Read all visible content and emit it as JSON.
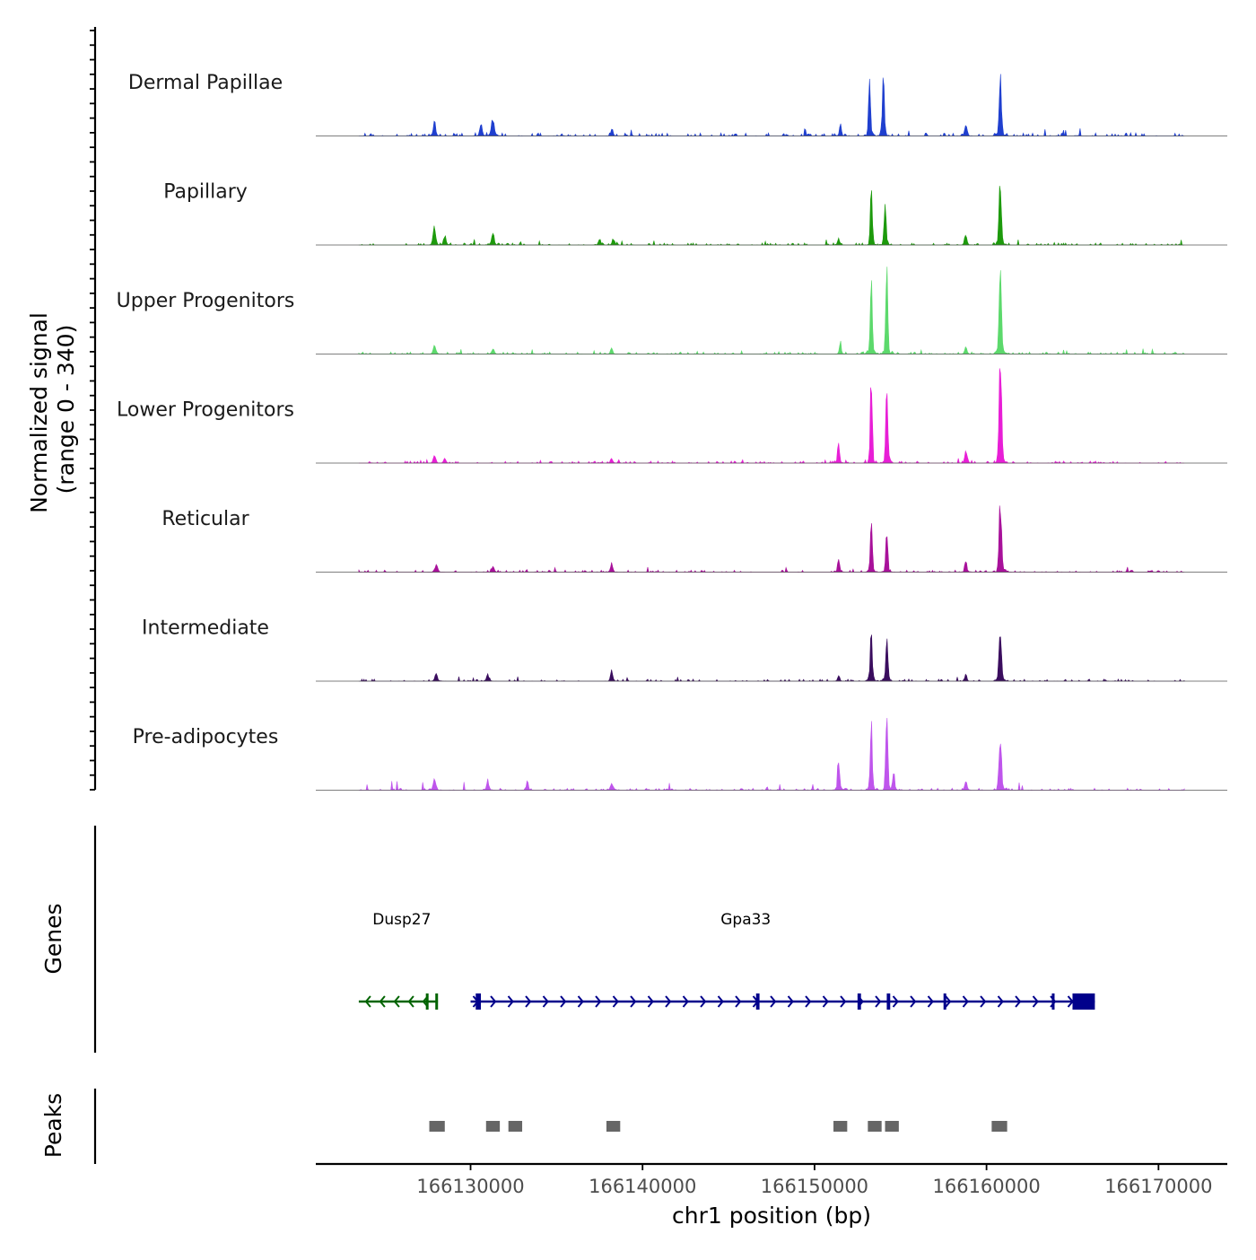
{
  "chart_data": {
    "type": "area",
    "title": "",
    "ylabel_line1": "Normalized signal",
    "ylabel_line2": "(range 0 - 340)",
    "ylim": [
      0,
      340
    ],
    "xlabel": "chr1 position (bp)",
    "xlim": [
      166121000,
      166174000
    ],
    "xticks": [
      {
        "value": 166130000,
        "label": "166130000"
      },
      {
        "value": 166140000,
        "label": "166140000"
      },
      {
        "value": 166150000,
        "label": "166150000"
      },
      {
        "value": 166160000,
        "label": "166160000"
      },
      {
        "value": 166170000,
        "label": "166170000"
      }
    ],
    "signal_range": [
      166123500,
      166171500
    ],
    "series": [
      {
        "name": "Dermal Papillae",
        "color": "#1f3fcf",
        "baseline": 3,
        "noise": 6,
        "peaks": [
          [
            166127900,
            14,
            150
          ],
          [
            166130600,
            10,
            150
          ],
          [
            166131300,
            18,
            180
          ],
          [
            166138200,
            7,
            120
          ],
          [
            166151500,
            12,
            120
          ],
          [
            166153200,
            58,
            120
          ],
          [
            166154000,
            60,
            120
          ],
          [
            166158800,
            13,
            140
          ],
          [
            166160800,
            63,
            140
          ]
        ]
      },
      {
        "name": "Papillary",
        "color": "#1d9a0c",
        "baseline": 2,
        "noise": 5,
        "peaks": [
          [
            166127900,
            20,
            160
          ],
          [
            166128500,
            10,
            150
          ],
          [
            166131300,
            11,
            160
          ],
          [
            166137500,
            6,
            140
          ],
          [
            166138300,
            6,
            140
          ],
          [
            166151400,
            6,
            130
          ],
          [
            166153300,
            55,
            120
          ],
          [
            166154100,
            42,
            120
          ],
          [
            166158800,
            10,
            140
          ],
          [
            166160800,
            64,
            140
          ]
        ]
      },
      {
        "name": "Upper Progenitors",
        "color": "#5cd96c",
        "baseline": 2,
        "noise": 4,
        "peaks": [
          [
            166127900,
            8,
            160
          ],
          [
            166131300,
            6,
            150
          ],
          [
            166138200,
            6,
            140
          ],
          [
            166151500,
            12,
            110
          ],
          [
            166153300,
            77,
            120
          ],
          [
            166154200,
            86,
            120
          ],
          [
            166158800,
            8,
            130
          ],
          [
            166160800,
            80,
            150
          ]
        ]
      },
      {
        "name": "Lower Progenitors",
        "color": "#e81ed6",
        "baseline": 2,
        "noise": 4,
        "peaks": [
          [
            166127900,
            7,
            160
          ],
          [
            166128500,
            5,
            140
          ],
          [
            166138200,
            5,
            140
          ],
          [
            166151400,
            22,
            120
          ],
          [
            166153300,
            88,
            120
          ],
          [
            166154200,
            94,
            120
          ],
          [
            166158800,
            13,
            130
          ],
          [
            166160800,
            106,
            150
          ]
        ]
      },
      {
        "name": "Reticular",
        "color": "#a8119a",
        "baseline": 2,
        "noise": 4,
        "peaks": [
          [
            166128000,
            7,
            180
          ],
          [
            166131300,
            5,
            160
          ],
          [
            166138200,
            10,
            140
          ],
          [
            166151400,
            12,
            120
          ],
          [
            166153300,
            55,
            120
          ],
          [
            166154200,
            45,
            120
          ],
          [
            166158800,
            11,
            130
          ],
          [
            166160800,
            73,
            150
          ]
        ]
      },
      {
        "name": "Intermediate",
        "color": "#3a0d5e",
        "baseline": 2,
        "noise": 4,
        "peaks": [
          [
            166128000,
            6,
            170
          ],
          [
            166131000,
            6,
            170
          ],
          [
            166138200,
            10,
            140
          ],
          [
            166151400,
            6,
            120
          ],
          [
            166153300,
            50,
            120
          ],
          [
            166154200,
            46,
            120
          ],
          [
            166158800,
            7,
            130
          ],
          [
            166160800,
            56,
            150
          ]
        ]
      },
      {
        "name": "Pre-adipocytes",
        "color": "#bf55ec",
        "baseline": 2,
        "noise": 8,
        "peaks": [
          [
            166127900,
            13,
            150
          ],
          [
            166131000,
            9,
            150
          ],
          [
            166133300,
            10,
            120
          ],
          [
            166138200,
            8,
            140
          ],
          [
            166151400,
            30,
            120
          ],
          [
            166153300,
            68,
            120
          ],
          [
            166154200,
            82,
            120
          ],
          [
            166154600,
            20,
            120
          ],
          [
            166158800,
            10,
            130
          ],
          [
            166160800,
            55,
            150
          ]
        ]
      }
    ],
    "genes_label": "Genes",
    "genes": [
      {
        "name": "Dusp27",
        "start": 166123500,
        "end": 166128100,
        "strand": "-",
        "color": "#006400",
        "exons": [
          [
            166127400,
            166127500
          ],
          [
            166127950,
            166128000
          ]
        ]
      },
      {
        "name": "Gpa33",
        "start": 166130000,
        "end": 166166300,
        "strand": "+",
        "color": "#00008b",
        "exons": [
          [
            166130300,
            166130600
          ],
          [
            166146600,
            166146800
          ],
          [
            166152500,
            166152700
          ],
          [
            166154200,
            166154400
          ],
          [
            166157500,
            166157600
          ],
          [
            166163800,
            166163900
          ],
          [
            166165000,
            166166300
          ]
        ]
      }
    ],
    "peaks_label": "Peaks",
    "peaks": [
      [
        166127600,
        166128500
      ],
      [
        166130900,
        166131700
      ],
      [
        166132200,
        166133000
      ],
      [
        166137900,
        166138700
      ],
      [
        166151100,
        166151900
      ],
      [
        166153100,
        166153900
      ],
      [
        166154100,
        166154900
      ],
      [
        166160300,
        166161200
      ]
    ]
  }
}
